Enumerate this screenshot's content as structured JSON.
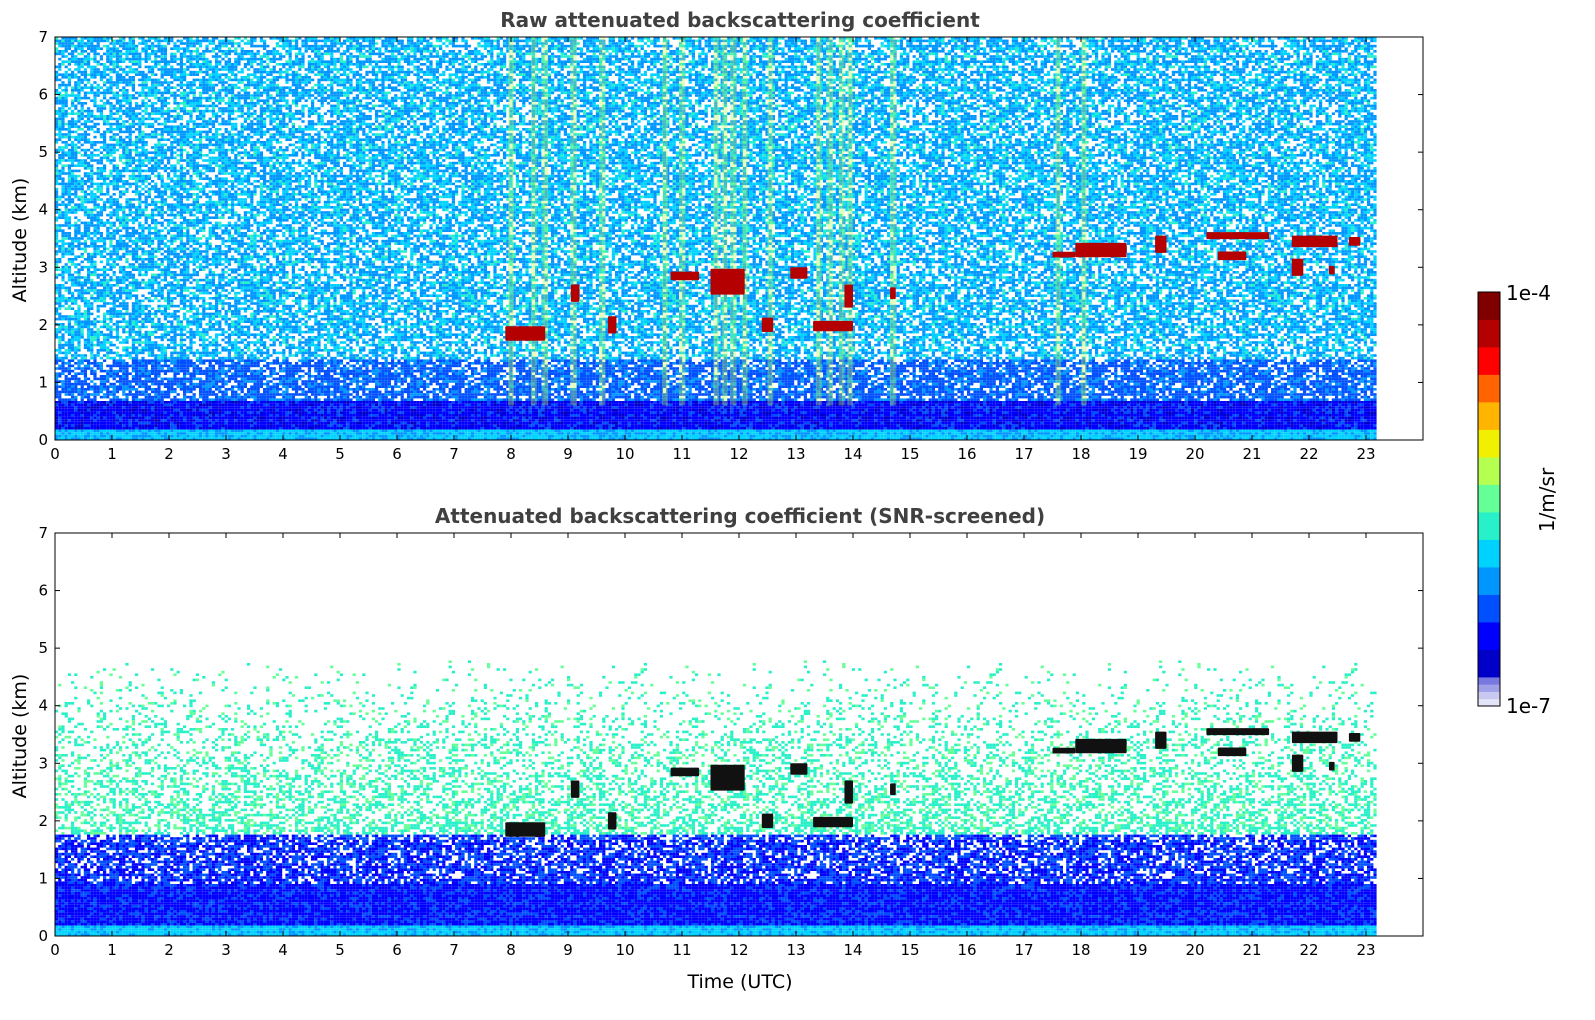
{
  "colors": {
    "title": "#404040",
    "colormap": [
      "#0000c8",
      "#0000ff",
      "#0050ff",
      "#0096ff",
      "#00d2ff",
      "#28f0c8",
      "#64ff96",
      "#b4ff50",
      "#f0f000",
      "#ffb400",
      "#ff6400",
      "#ff0000",
      "#b40000",
      "#800000"
    ],
    "colorbar_low": [
      "#e4e4f8",
      "#c8c8f0",
      "#a0a0e8",
      "#7878e0"
    ]
  },
  "chart_data": [
    {
      "type": "heatmap",
      "title": "Raw attenuated backscattering coefficient",
      "xlabel": "",
      "ylabel": "Altitude (km)",
      "xlim": [
        0,
        24
      ],
      "ylim": [
        0,
        7
      ],
      "xticks": [
        "0",
        "1",
        "2",
        "3",
        "4",
        "5",
        "6",
        "7",
        "8",
        "9",
        "10",
        "11",
        "12",
        "13",
        "14",
        "15",
        "16",
        "17",
        "18",
        "19",
        "20",
        "21",
        "22",
        "23"
      ],
      "yticks": [
        "0",
        "1",
        "2",
        "3",
        "4",
        "5",
        "6",
        "7"
      ],
      "data_end_time": 23.2,
      "boundary_layer_top_km": 0.7,
      "cloud_segments": [
        {
          "t0": 7.9,
          "t1": 8.6,
          "alt": 1.85,
          "thick": 0.25
        },
        {
          "t0": 9.05,
          "t1": 9.2,
          "alt": 2.55,
          "thick": 0.3
        },
        {
          "t0": 9.7,
          "t1": 9.85,
          "alt": 2.0,
          "thick": 0.3
        },
        {
          "t0": 10.8,
          "t1": 11.3,
          "alt": 2.85,
          "thick": 0.15
        },
        {
          "t0": 11.5,
          "t1": 12.1,
          "alt": 2.75,
          "thick": 0.45
        },
        {
          "t0": 12.4,
          "t1": 12.6,
          "alt": 2.0,
          "thick": 0.25
        },
        {
          "t0": 12.9,
          "t1": 13.2,
          "alt": 2.9,
          "thick": 0.2
        },
        {
          "t0": 13.3,
          "t1": 14.0,
          "alt": 1.98,
          "thick": 0.18
        },
        {
          "t0": 13.85,
          "t1": 14.0,
          "alt": 2.5,
          "thick": 0.4
        },
        {
          "t0": 14.65,
          "t1": 14.75,
          "alt": 2.55,
          "thick": 0.2
        },
        {
          "t0": 17.5,
          "t1": 17.9,
          "alt": 3.22,
          "thick": 0.1
        },
        {
          "t0": 17.9,
          "t1": 18.8,
          "alt": 3.3,
          "thick": 0.25
        },
        {
          "t0": 19.3,
          "t1": 19.5,
          "alt": 3.4,
          "thick": 0.3
        },
        {
          "t0": 20.2,
          "t1": 21.3,
          "alt": 3.55,
          "thick": 0.12
        },
        {
          "t0": 20.4,
          "t1": 20.9,
          "alt": 3.2,
          "thick": 0.15
        },
        {
          "t0": 21.7,
          "t1": 22.5,
          "alt": 3.45,
          "thick": 0.2
        },
        {
          "t0": 21.7,
          "t1": 21.9,
          "alt": 3.0,
          "thick": 0.3
        },
        {
          "t0": 22.7,
          "t1": 22.9,
          "alt": 3.45,
          "thick": 0.15
        },
        {
          "t0": 22.35,
          "t1": 22.45,
          "alt": 2.95,
          "thick": 0.15
        }
      ],
      "precip_streaks_utc": [
        8.0,
        8.4,
        8.6,
        9.1,
        9.6,
        10.7,
        11.0,
        11.6,
        11.75,
        11.9,
        12.1,
        12.55,
        13.4,
        13.6,
        13.8,
        13.95,
        14.7,
        17.6,
        18.05
      ]
    },
    {
      "type": "heatmap",
      "title": "Attenuated backscattering coefficient (SNR-screened)",
      "xlabel": "Time (UTC)",
      "ylabel": "Altitude (km)",
      "xlim": [
        0,
        24
      ],
      "ylim": [
        0,
        7
      ],
      "xticks": [
        "0",
        "1",
        "2",
        "3",
        "4",
        "5",
        "6",
        "7",
        "8",
        "9",
        "10",
        "11",
        "12",
        "13",
        "14",
        "15",
        "16",
        "17",
        "18",
        "19",
        "20",
        "21",
        "22",
        "23"
      ],
      "yticks": [
        "0",
        "1",
        "2",
        "3",
        "4",
        "5",
        "6",
        "7"
      ],
      "data_end_time": 23.2,
      "boundary_layer_top_km": 1.75
    }
  ],
  "colorbar": {
    "label": "1/m/sr",
    "max_label": "1e-4",
    "min_label": "1e-7"
  }
}
